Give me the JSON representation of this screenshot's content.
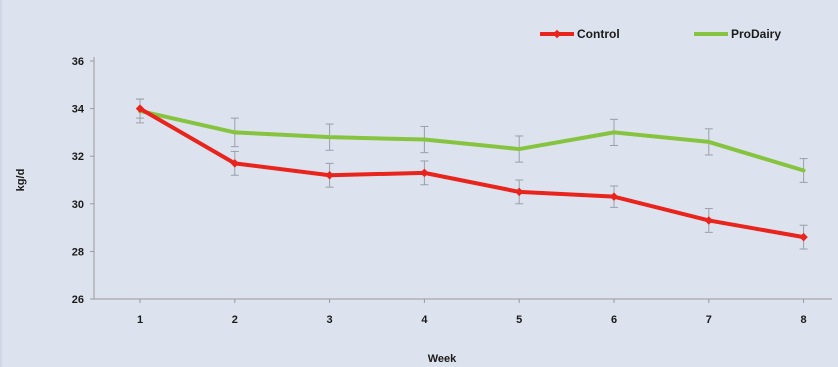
{
  "chart_data": {
    "type": "line",
    "xlabel": "Week",
    "ylabel": "kg/d",
    "categories": [
      "1",
      "2",
      "3",
      "4",
      "5",
      "6",
      "7",
      "8"
    ],
    "ylim": [
      26,
      36
    ],
    "yticks": [
      26,
      28,
      30,
      32,
      34,
      36
    ],
    "grid": false,
    "legend_position": "top-right",
    "error_bars": true,
    "series": [
      {
        "name": "Control",
        "color": "#e8241c",
        "values": [
          34.0,
          31.7,
          31.2,
          31.3,
          30.5,
          30.3,
          29.3,
          28.6
        ],
        "error": [
          0.4,
          0.5,
          0.5,
          0.5,
          0.5,
          0.45,
          0.5,
          0.5
        ]
      },
      {
        "name": "ProDairy",
        "color": "#86c440",
        "values": [
          33.9,
          33.0,
          32.8,
          32.7,
          32.3,
          33.0,
          32.6,
          31.4
        ],
        "error": [
          0.5,
          0.6,
          0.55,
          0.55,
          0.55,
          0.55,
          0.55,
          0.5
        ]
      }
    ]
  }
}
